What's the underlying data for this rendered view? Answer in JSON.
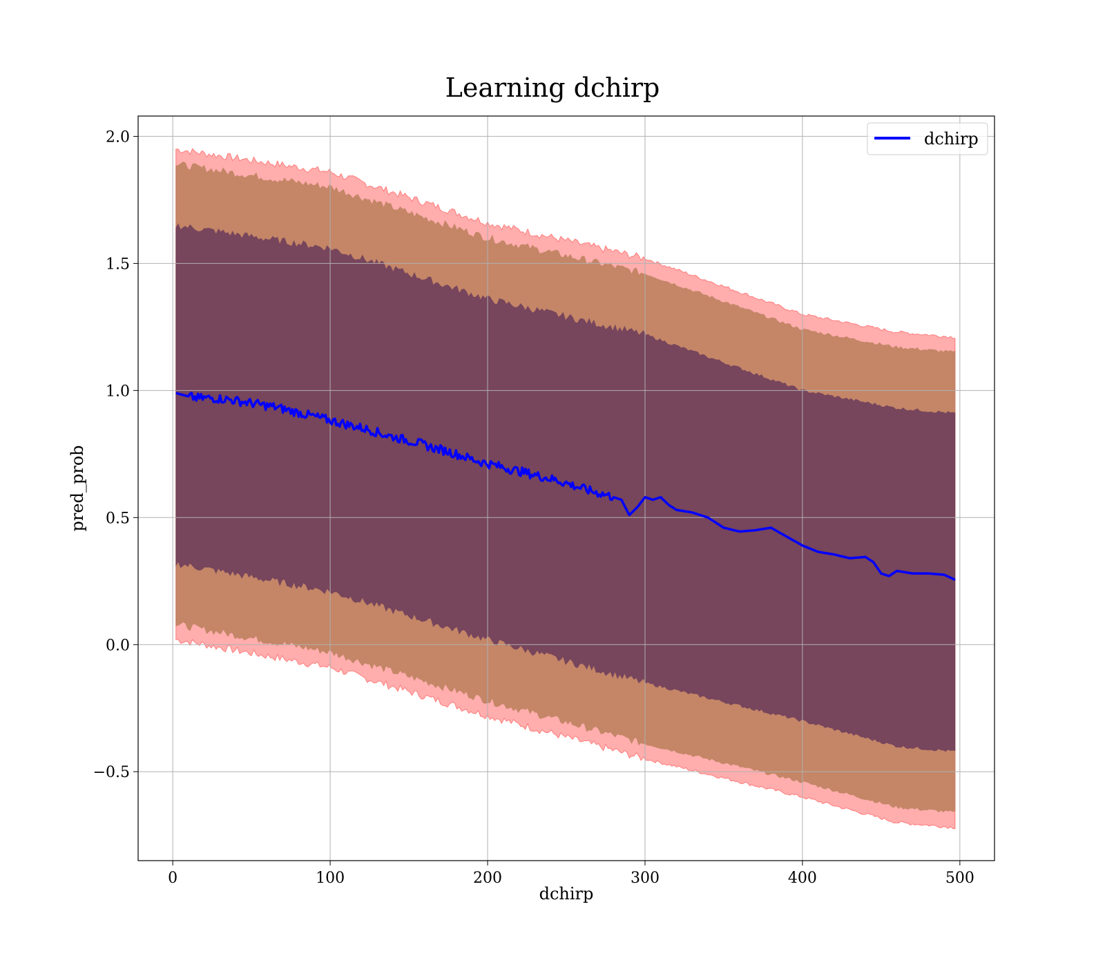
{
  "chart_data": {
    "type": "line",
    "title": "Learning dchirp",
    "xlabel": "dchirp",
    "ylabel": "pred_prob",
    "xlim": [
      -22,
      522
    ],
    "ylim": [
      -0.85,
      2.08
    ],
    "xticks": [
      0,
      100,
      200,
      300,
      400,
      500
    ],
    "xtick_labels": [
      "0",
      "100",
      "200",
      "300",
      "400",
      "500"
    ],
    "yticks": [
      -0.5,
      0.0,
      0.5,
      1.0,
      1.5,
      2.0
    ],
    "ytick_labels": [
      "−0.5",
      "0.0",
      "0.5",
      "1.0",
      "1.5",
      "2.0"
    ],
    "grid": true,
    "legend": {
      "position": "top-right",
      "entries": [
        "dchirp"
      ]
    },
    "colors": {
      "line": "#0000ff",
      "band_outer": "#ff0000",
      "band_middle": "#b07a50",
      "band_inner": "#6a3a5a",
      "grid": "#b0b0b0"
    },
    "series": [
      {
        "name": "dchirp",
        "x": [
          2,
          8,
          15,
          25,
          35,
          45,
          55,
          65,
          75,
          85,
          95,
          105,
          115,
          125,
          135,
          145,
          155,
          165,
          175,
          185,
          195,
          205,
          215,
          225,
          235,
          245,
          255,
          265,
          275,
          285,
          290,
          295,
          300,
          305,
          310,
          315,
          320,
          330,
          340,
          350,
          360,
          370,
          380,
          390,
          400,
          410,
          420,
          430,
          440,
          445,
          450,
          455,
          460,
          470,
          480,
          490,
          497
        ],
        "y": [
          0.99,
          0.98,
          0.97,
          0.97,
          0.965,
          0.955,
          0.945,
          0.935,
          0.92,
          0.905,
          0.89,
          0.875,
          0.86,
          0.845,
          0.825,
          0.81,
          0.795,
          0.775,
          0.76,
          0.74,
          0.72,
          0.705,
          0.69,
          0.675,
          0.66,
          0.645,
          0.625,
          0.605,
          0.59,
          0.57,
          0.51,
          0.54,
          0.58,
          0.57,
          0.58,
          0.55,
          0.53,
          0.52,
          0.5,
          0.46,
          0.445,
          0.45,
          0.46,
          0.425,
          0.39,
          0.365,
          0.355,
          0.34,
          0.345,
          0.325,
          0.28,
          0.27,
          0.29,
          0.28,
          0.28,
          0.275,
          0.255
        ]
      }
    ],
    "bands": [
      {
        "name": "outer",
        "x": [
          2,
          100,
          200,
          300,
          400,
          460,
          497
        ],
        "upper": [
          1.95,
          1.86,
          1.66,
          1.52,
          1.3,
          1.23,
          1.21
        ],
        "lower": [
          0.02,
          -0.09,
          -0.28,
          -0.45,
          -0.6,
          -0.7,
          -0.72
        ]
      },
      {
        "name": "middle",
        "x": [
          2,
          100,
          200,
          300,
          400,
          460,
          497
        ],
        "upper": [
          1.89,
          1.8,
          1.6,
          1.46,
          1.24,
          1.17,
          1.15
        ],
        "lower": [
          0.08,
          -0.03,
          -0.22,
          -0.39,
          -0.54,
          -0.64,
          -0.66
        ]
      },
      {
        "name": "inner",
        "x": [
          2,
          100,
          200,
          300,
          400,
          460,
          497
        ],
        "upper": [
          1.65,
          1.56,
          1.36,
          1.22,
          1.0,
          0.93,
          0.91
        ],
        "lower": [
          0.32,
          0.21,
          0.02,
          -0.15,
          -0.3,
          -0.4,
          -0.42
        ]
      }
    ]
  }
}
